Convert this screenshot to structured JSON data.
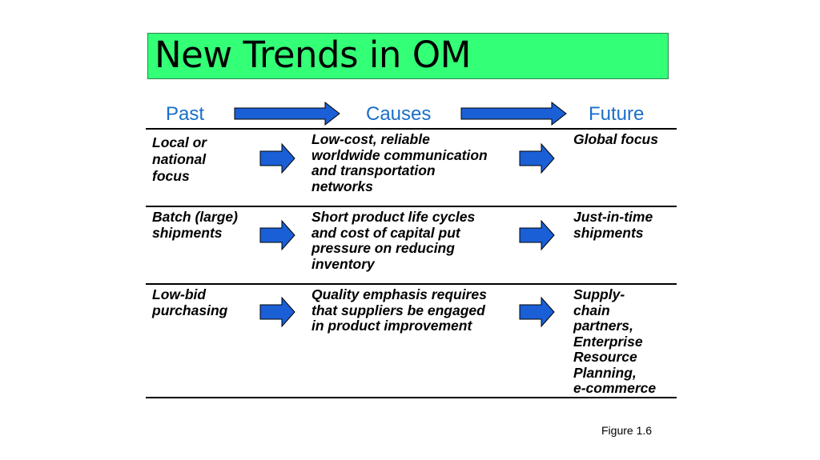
{
  "title": "New Trends in OM",
  "headers": {
    "past": "Past",
    "causes": "Causes",
    "future": "Future"
  },
  "rows": [
    {
      "past": [
        "Local or",
        "national",
        "focus"
      ],
      "causes": [
        "Low-cost, reliable",
        "worldwide communication",
        "and transportation",
        "networks"
      ],
      "future": [
        "Global focus"
      ]
    },
    {
      "past": [
        "Batch (large)",
        "shipments"
      ],
      "causes": [
        "Short product life cycles",
        "and cost of capital put",
        "pressure on reducing",
        "inventory"
      ],
      "future": [
        "Just-in-time",
        "shipments"
      ]
    },
    {
      "past": [
        "Low-bid",
        "purchasing"
      ],
      "causes": [
        "Quality emphasis requires",
        "that suppliers be engaged",
        "in product improvement"
      ],
      "future": [
        "Supply-",
        "chain",
        "partners,",
        "Enterprise",
        "Resource",
        "Planning,",
        "e-commerce"
      ]
    }
  ],
  "figure_caption": "Figure 1.6",
  "colors": {
    "title_bg": "#33ff77",
    "header_text": "#1a6fc9",
    "arrow_fill": "#1a5fd6"
  }
}
